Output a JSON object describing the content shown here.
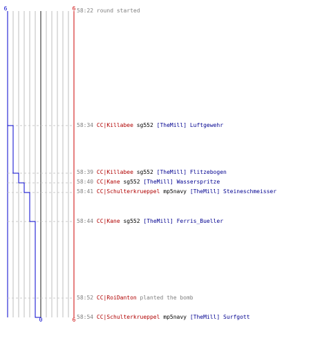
{
  "scoreboard": {
    "left_start": "6",
    "right_start": "6",
    "left_end": "0",
    "right_end": "6",
    "colors": {
      "left_team": "#0000cc",
      "right_team": "#cc0000",
      "grid": "#bdbdbd",
      "center": "#666666",
      "dash": "#c8c8c8",
      "text_time": "#808080",
      "text_player": "#b00000",
      "text_team": "#000090"
    }
  },
  "events": [
    {
      "time": "58:22",
      "text": "round started"
    },
    {
      "time": "58:34",
      "attacker": "CC|Killabee",
      "weapon": "sg552",
      "victim_team": "[TheMill]",
      "victim": "Luftgewehr"
    },
    {
      "time": "58:39",
      "attacker": "CC|Killabee",
      "weapon": "sg552",
      "victim_team": "[TheMill]",
      "victim": "Flitzebogen"
    },
    {
      "time": "58:40",
      "attacker": "CC|Kane",
      "weapon": "sg552",
      "victim_team": "[TheMill]",
      "victim": "Wasserspritze"
    },
    {
      "time": "58:41",
      "attacker": "CC|Schulterkrueppel",
      "weapon": "mp5navy",
      "victim_team": "[TheMill]",
      "victim": "Steineschmeisser"
    },
    {
      "time": "58:44",
      "attacker": "CC|Kane",
      "weapon": "sg552",
      "victim_team": "[TheMill]",
      "victim": "Ferris_Bueller"
    },
    {
      "time": "58:52",
      "attacker": "CC|RoiDanton",
      "text": "planted the bomb"
    },
    {
      "time": "58:54",
      "attacker": "CC|Schulterkrueppel",
      "weapon": "mp5navy",
      "victim_team": "[TheMill]",
      "victim": "Surfgott"
    }
  ]
}
